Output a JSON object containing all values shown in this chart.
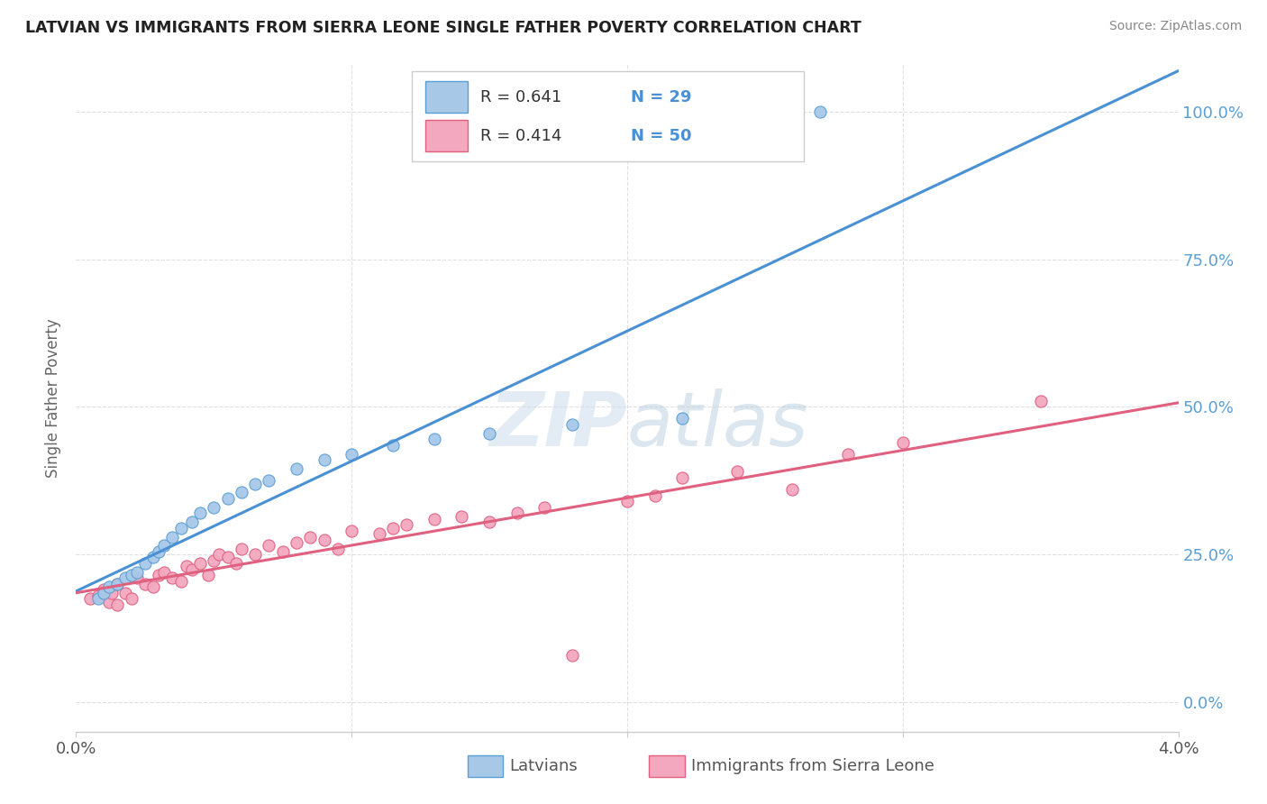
{
  "title": "LATVIAN VS IMMIGRANTS FROM SIERRA LEONE SINGLE FATHER POVERTY CORRELATION CHART",
  "source": "Source: ZipAtlas.com",
  "ylabel": "Single Father Poverty",
  "ytick_labels": [
    "0.0%",
    "25.0%",
    "50.0%",
    "75.0%",
    "100.0%"
  ],
  "ytick_values": [
    0.0,
    0.25,
    0.5,
    0.75,
    1.0
  ],
  "xlim": [
    0.0,
    0.04
  ],
  "ylim": [
    -0.05,
    1.08
  ],
  "r1": 0.641,
  "n1": 29,
  "r2": 0.414,
  "n2": 50,
  "color_latvian_fill": "#a8c8e8",
  "color_latvian_edge": "#5a9fd4",
  "color_sierra_fill": "#f4a8c0",
  "color_sierra_edge": "#e06080",
  "color_line1": "#4a90d4",
  "color_line2": "#e06080",
  "color_diag": "#b8d0e8",
  "color_grid": "#e0e0e0",
  "color_title": "#222222",
  "color_source": "#888888",
  "color_ytick": "#5a9fd4",
  "legend_label1": "Latvians",
  "legend_label2": "Immigrants from Sierra Leone",
  "latvian_x": [
    0.0008,
    0.001,
    0.0012,
    0.0015,
    0.0018,
    0.002,
    0.0022,
    0.0025,
    0.0028,
    0.003,
    0.0032,
    0.0035,
    0.0038,
    0.0042,
    0.0045,
    0.005,
    0.0055,
    0.006,
    0.0065,
    0.007,
    0.008,
    0.009,
    0.01,
    0.0115,
    0.013,
    0.015,
    0.018,
    0.022,
    0.027
  ],
  "latvian_y": [
    0.175,
    0.185,
    0.195,
    0.2,
    0.21,
    0.215,
    0.22,
    0.235,
    0.245,
    0.255,
    0.265,
    0.28,
    0.295,
    0.305,
    0.32,
    0.33,
    0.345,
    0.355,
    0.37,
    0.375,
    0.395,
    0.41,
    0.42,
    0.435,
    0.445,
    0.455,
    0.47,
    0.48,
    1.0
  ],
  "sierra_x": [
    0.0005,
    0.0008,
    0.001,
    0.0012,
    0.0013,
    0.0015,
    0.0015,
    0.0018,
    0.002,
    0.0022,
    0.0025,
    0.0028,
    0.003,
    0.0032,
    0.0035,
    0.0038,
    0.004,
    0.0042,
    0.0045,
    0.0048,
    0.005,
    0.0052,
    0.0055,
    0.0058,
    0.006,
    0.0065,
    0.007,
    0.0075,
    0.008,
    0.0085,
    0.009,
    0.0095,
    0.01,
    0.011,
    0.0115,
    0.012,
    0.013,
    0.014,
    0.015,
    0.016,
    0.017,
    0.018,
    0.02,
    0.021,
    0.022,
    0.024,
    0.026,
    0.028,
    0.03,
    0.035
  ],
  "sierra_y": [
    0.175,
    0.18,
    0.19,
    0.17,
    0.185,
    0.165,
    0.2,
    0.185,
    0.175,
    0.21,
    0.2,
    0.195,
    0.215,
    0.22,
    0.21,
    0.205,
    0.23,
    0.225,
    0.235,
    0.215,
    0.24,
    0.25,
    0.245,
    0.235,
    0.26,
    0.25,
    0.265,
    0.255,
    0.27,
    0.28,
    0.275,
    0.26,
    0.29,
    0.285,
    0.295,
    0.3,
    0.31,
    0.315,
    0.305,
    0.32,
    0.33,
    0.08,
    0.34,
    0.35,
    0.38,
    0.39,
    0.36,
    0.42,
    0.44,
    0.51
  ]
}
